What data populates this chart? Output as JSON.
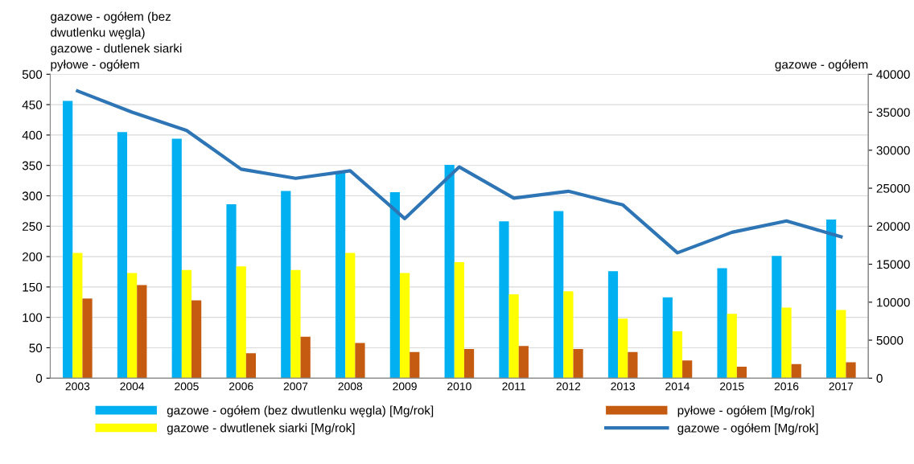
{
  "chart_data": {
    "type": "bar",
    "ylabel": "gazowe - ogółem (bez\ndwutlenku węgla)\ngazowe - dutlenek siarki\npyłowe - ogółem",
    "y2label": "gazowe - ogółem",
    "categories": [
      "2003",
      "2004",
      "2005",
      "2006",
      "2007",
      "2008",
      "2009",
      "2010",
      "2011",
      "2012",
      "2013",
      "2014",
      "2015",
      "2016",
      "2017"
    ],
    "series": [
      {
        "name": "gazowe - ogółem (bez dwutlenku węgla) [Mg/rok]",
        "color": "#00b0f0",
        "values": [
          456,
          405,
          394,
          286,
          308,
          338,
          306,
          351,
          258,
          275,
          176,
          133,
          181,
          201,
          261
        ]
      },
      {
        "name": "gazowe - dwutlenek siarki [Mg/rok]",
        "color": "#ffff00",
        "values": [
          206,
          173,
          178,
          184,
          178,
          206,
          173,
          191,
          138,
          143,
          98,
          77,
          106,
          116,
          112
        ]
      },
      {
        "name": "pyłowe - ogółem [Mg/rok]",
        "color": "#c55a11",
        "values": [
          131,
          153,
          128,
          41,
          68,
          58,
          43,
          48,
          53,
          48,
          43,
          29,
          19,
          23,
          26
        ]
      },
      {
        "name": "gazowe - ogółem [Mg/rok]",
        "type": "line",
        "axis": "y2",
        "color": "#2e75b6",
        "values": [
          37800,
          35000,
          32600,
          27500,
          26300,
          27300,
          21000,
          27800,
          23700,
          24600,
          22800,
          16500,
          19200,
          20700,
          18600
        ]
      }
    ],
    "ylim": [
      0,
      500
    ],
    "yticks": [
      0,
      50,
      100,
      150,
      200,
      250,
      300,
      350,
      400,
      450,
      500
    ],
    "y2lim": [
      0,
      40000
    ],
    "y2ticks": [
      0,
      5000,
      10000,
      15000,
      20000,
      25000,
      30000,
      35000,
      40000
    ],
    "grid": "y",
    "legend": "bottom",
    "line_style": "solid",
    "marker": "none"
  }
}
